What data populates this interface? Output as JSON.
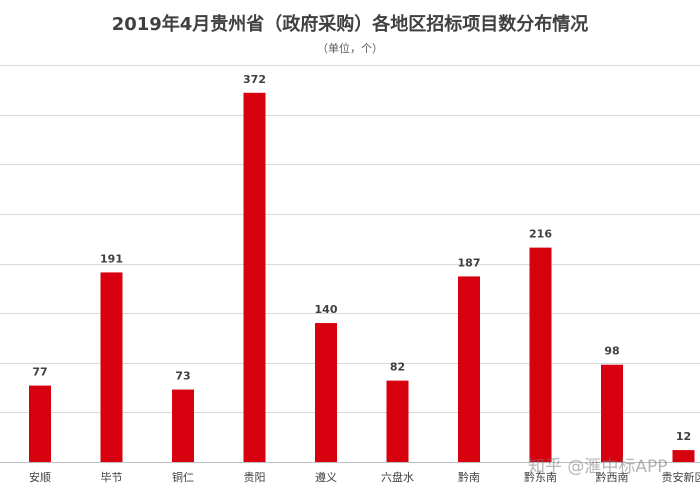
{
  "chart_data": {
    "type": "bar",
    "title": "2019年4月贵州省（政府采购）各地区招标项目数分布情况",
    "subtitle": "（单位，个）",
    "categories": [
      "安顺",
      "毕节",
      "铜仁",
      "贵阳",
      "遵义",
      "六盘水",
      "黔南",
      "黔东南",
      "黔西南",
      "贵安新区"
    ],
    "values": [
      77,
      191,
      73,
      372,
      140,
      82,
      187,
      216,
      98,
      12
    ],
    "ylim": [
      0,
      400
    ],
    "grid": true,
    "bar_color": "#d6000f",
    "gridline_color": "#d9d9d9",
    "axis_color": "#bfbfbf"
  },
  "watermark": "知乎 @滙中标APP"
}
